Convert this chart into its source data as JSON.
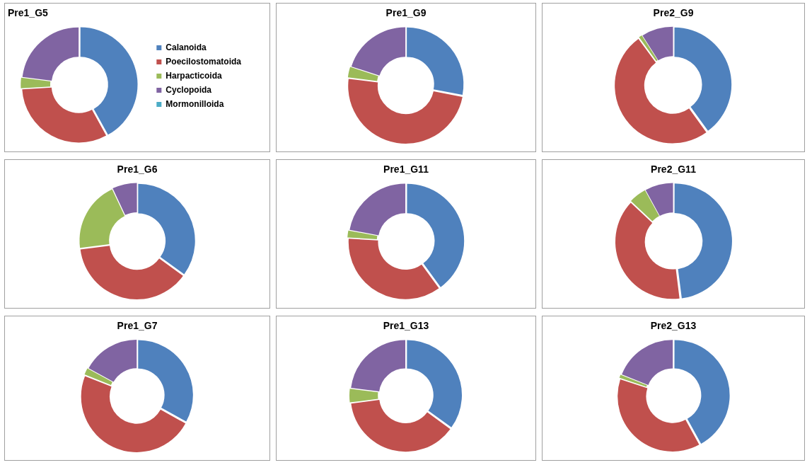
{
  "chart_data": [
    {
      "type": "donut",
      "title": "Pre1_G5",
      "legend": "right",
      "categories": [
        "Calanoida",
        "Poecilostomatoida",
        "Harpacticoida",
        "Cyclopoida",
        "Mormonilloida"
      ],
      "values": [
        42,
        32,
        3,
        23,
        0
      ],
      "colors": [
        "#4f81bd",
        "#c0504d",
        "#9bbb59",
        "#8064a2",
        "#4bacc6"
      ]
    },
    {
      "type": "donut",
      "title": "Pre1_G9",
      "categories": [
        null,
        null,
        null,
        null,
        null
      ],
      "values": [
        28,
        49,
        3,
        20,
        0
      ],
      "colors": [
        "#4f81bd",
        "#c0504d",
        "#9bbb59",
        "#8064a2",
        "#4bacc6"
      ]
    },
    {
      "type": "donut",
      "title": "Pre2_G9",
      "categories": [
        null,
        null,
        null,
        null,
        null
      ],
      "values": [
        40,
        50,
        1,
        9,
        0
      ],
      "colors": [
        "#4f81bd",
        "#c0504d",
        "#9bbb59",
        "#8064a2",
        "#4bacc6"
      ]
    },
    {
      "type": "donut",
      "title": "Pre1_G6",
      "categories": [
        null,
        null,
        null,
        null,
        null
      ],
      "values": [
        35,
        38,
        20,
        7,
        0
      ],
      "colors": [
        "#4f81bd",
        "#c0504d",
        "#9bbb59",
        "#8064a2",
        "#4bacc6"
      ]
    },
    {
      "type": "donut",
      "title": "Pre1_G11",
      "categories": [
        null,
        null,
        null,
        null,
        null
      ],
      "values": [
        40,
        36,
        2,
        22,
        0
      ],
      "colors": [
        "#4f81bd",
        "#c0504d",
        "#9bbb59",
        "#8064a2",
        "#4bacc6"
      ]
    },
    {
      "type": "donut",
      "title": "Pre2_G11",
      "categories": [
        null,
        null,
        null,
        null,
        null
      ],
      "values": [
        48,
        39,
        5,
        8,
        0
      ],
      "colors": [
        "#4f81bd",
        "#c0504d",
        "#9bbb59",
        "#8064a2",
        "#4bacc6"
      ]
    },
    {
      "type": "donut",
      "title": "Pre1_G7",
      "categories": [
        null,
        null,
        null,
        null,
        null
      ],
      "values": [
        33,
        48,
        2,
        17,
        0
      ],
      "colors": [
        "#4f81bd",
        "#c0504d",
        "#9bbb59",
        "#8064a2",
        "#4bacc6"
      ]
    },
    {
      "type": "donut",
      "title": "Pre1_G13",
      "categories": [
        null,
        null,
        null,
        null,
        null
      ],
      "values": [
        35,
        38,
        4,
        23,
        0
      ],
      "colors": [
        "#4f81bd",
        "#c0504d",
        "#9bbb59",
        "#8064a2",
        "#4bacc6"
      ]
    },
    {
      "type": "donut",
      "title": "Pre2_G13",
      "categories": [
        null,
        null,
        null,
        null,
        null
      ],
      "values": [
        42,
        38,
        1,
        19,
        0
      ],
      "colors": [
        "#4f81bd",
        "#c0504d",
        "#9bbb59",
        "#8064a2",
        "#4bacc6"
      ]
    }
  ]
}
